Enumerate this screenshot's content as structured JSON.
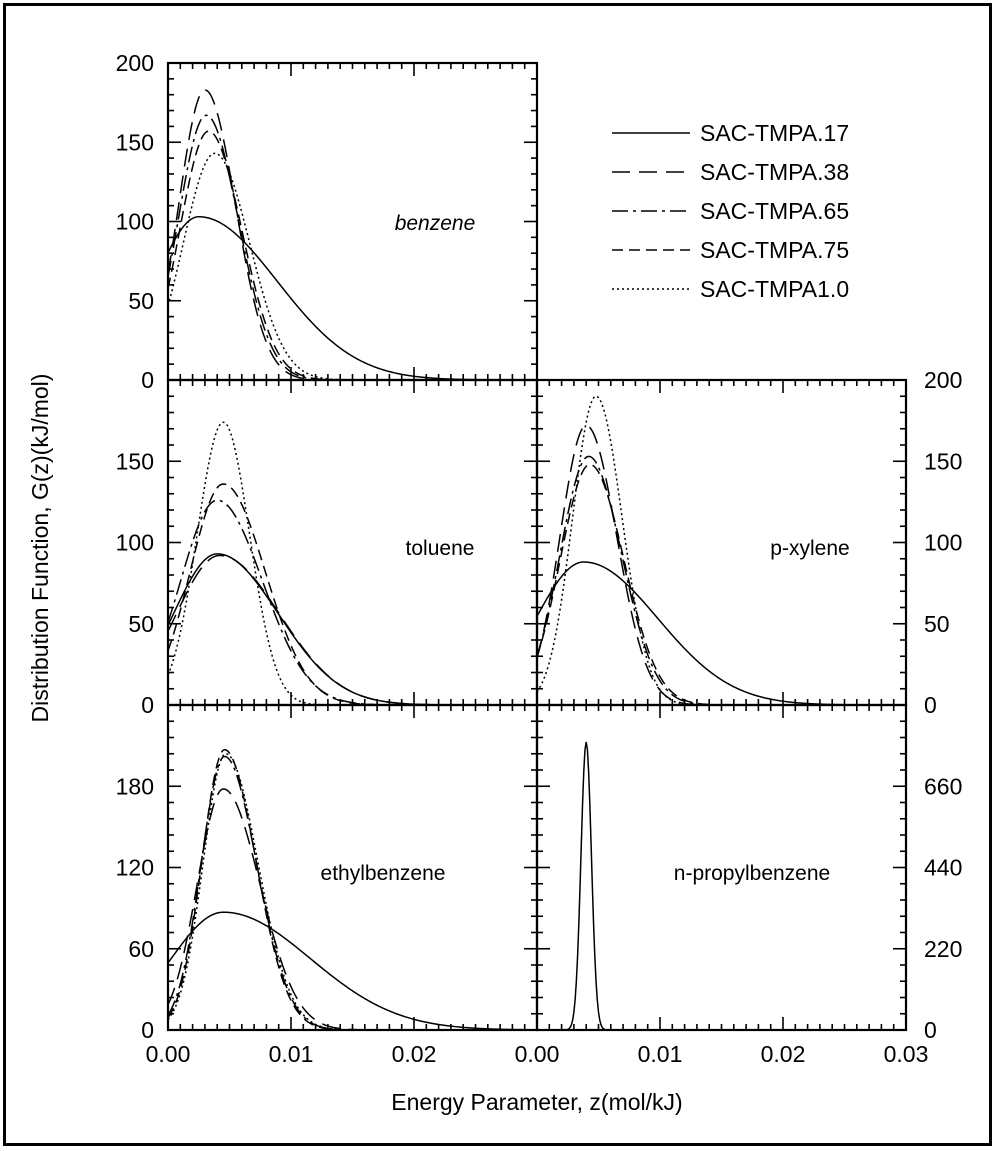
{
  "chart_data": {
    "type": "line",
    "ylabel": "Distribution Function, G(z)(kJ/mol)",
    "xlabel": "Energy Parameter, z(mol/kJ)",
    "legend": {
      "placement": "top-right",
      "entries": [
        {
          "name": "SAC-TMPA.17",
          "dash": "solid"
        },
        {
          "name": "SAC-TMPA.38",
          "dash": "long-dash"
        },
        {
          "name": "SAC-TMPA.65",
          "dash": "long-dash-dot"
        },
        {
          "name": "SAC-TMPA.75",
          "dash": "dash"
        },
        {
          "name": "SAC-TMPA1.0",
          "dash": "dotted"
        }
      ]
    },
    "x_ticklabels": [
      "0.00",
      "0.01",
      "0.02",
      "0.00",
      "0.01",
      "0.02",
      "0.03"
    ],
    "panels": [
      {
        "id": "benzene",
        "label": "benzene",
        "italic": true,
        "xlim": [
          0,
          0.03
        ],
        "ylim": [
          0,
          200
        ],
        "yticks": [
          "0",
          "50",
          "100",
          "150",
          "200"
        ],
        "ytick_side": "left",
        "series": [
          {
            "name": "SAC-TMPA.17",
            "peak_x": 0.0025,
            "peak_y": 103,
            "w_left": 0.005,
            "w_right": 0.009,
            "shape": 2.0
          },
          {
            "name": "SAC-TMPA.38",
            "peak_x": 0.003,
            "peak_y": 183,
            "w_left": 0.003,
            "w_right": 0.0035,
            "shape": 2.0
          },
          {
            "name": "SAC-TMPA.65",
            "peak_x": 0.0031,
            "peak_y": 167,
            "w_left": 0.0032,
            "w_right": 0.0037,
            "shape": 2.0
          },
          {
            "name": "SAC-TMPA.75",
            "peak_x": 0.0033,
            "peak_y": 157,
            "w_left": 0.0033,
            "w_right": 0.0038,
            "shape": 2.0
          },
          {
            "name": "SAC-TMPA1.0",
            "peak_x": 0.0038,
            "peak_y": 143,
            "w_left": 0.0036,
            "w_right": 0.004,
            "shape": 2.0
          }
        ]
      },
      {
        "id": "toluene",
        "label": "toluene",
        "italic": false,
        "xlim": [
          0,
          0.03
        ],
        "ylim": [
          0,
          200
        ],
        "yticks": [
          "0",
          "50",
          "100",
          "150"
        ],
        "ytick_side": "left",
        "series": [
          {
            "name": "SAC-TMPA.17",
            "peak_x": 0.004,
            "peak_y": 93,
            "w_left": 0.005,
            "w_right": 0.007,
            "shape": 2.0
          },
          {
            "name": "SAC-TMPA.38",
            "peak_x": 0.0042,
            "peak_y": 92,
            "w_left": 0.005,
            "w_right": 0.0069,
            "shape": 2.0
          },
          {
            "name": "SAC-TMPA.65",
            "peak_x": 0.004,
            "peak_y": 126,
            "w_left": 0.0042,
            "w_right": 0.0052,
            "shape": 2.0
          },
          {
            "name": "SAC-TMPA.75",
            "peak_x": 0.0045,
            "peak_y": 136,
            "w_left": 0.0038,
            "w_right": 0.0048,
            "shape": 2.0
          },
          {
            "name": "SAC-TMPA1.0",
            "peak_x": 0.0045,
            "peak_y": 174,
            "w_left": 0.003,
            "w_right": 0.003,
            "shape": 2.0
          }
        ]
      },
      {
        "id": "p-xylene",
        "label": "p-xylene",
        "italic": false,
        "xlim": [
          0,
          0.03
        ],
        "ylim": [
          0,
          200
        ],
        "yticks": [
          "0",
          "50",
          "100",
          "150",
          "200"
        ],
        "ytick_side": "right",
        "series": [
          {
            "name": "SAC-TMPA.17",
            "peak_x": 0.0038,
            "peak_y": 88,
            "w_left": 0.0055,
            "w_right": 0.0085,
            "shape": 2.0
          },
          {
            "name": "SAC-TMPA.38",
            "peak_x": 0.004,
            "peak_y": 172,
            "w_left": 0.003,
            "w_right": 0.0035,
            "shape": 2.0
          },
          {
            "name": "SAC-TMPA.65",
            "peak_x": 0.0042,
            "peak_y": 153,
            "w_left": 0.0033,
            "w_right": 0.0038,
            "shape": 2.0
          },
          {
            "name": "SAC-TMPA.75",
            "peak_x": 0.0043,
            "peak_y": 148,
            "w_left": 0.0034,
            "w_right": 0.0039,
            "shape": 2.0
          },
          {
            "name": "SAC-TMPA1.0",
            "peak_x": 0.0048,
            "peak_y": 190,
            "w_left": 0.0027,
            "w_right": 0.003,
            "shape": 2.0
          }
        ]
      },
      {
        "id": "ethylbenzene",
        "label": "ethylbenzene",
        "italic": false,
        "xlim": [
          0,
          0.03
        ],
        "ylim": [
          0,
          240
        ],
        "yticks": [
          "0",
          "60",
          "120",
          "180"
        ],
        "ytick_side": "left",
        "series": [
          {
            "name": "SAC-TMPA.17",
            "peak_x": 0.0045,
            "peak_y": 87,
            "w_left": 0.006,
            "w_right": 0.01,
            "shape": 2.0
          },
          {
            "name": "SAC-TMPA.38",
            "peak_x": 0.0045,
            "peak_y": 178,
            "w_left": 0.003,
            "w_right": 0.0042,
            "shape": 2.0
          },
          {
            "name": "SAC-TMPA.65",
            "peak_x": 0.0046,
            "peak_y": 202,
            "w_left": 0.0027,
            "w_right": 0.0037,
            "shape": 2.0
          },
          {
            "name": "SAC-TMPA.75",
            "peak_x": 0.0046,
            "peak_y": 207,
            "w_left": 0.0026,
            "w_right": 0.0036,
            "shape": 2.0
          },
          {
            "name": "SAC-TMPA1.0",
            "peak_x": 0.0047,
            "peak_y": 204,
            "w_left": 0.0026,
            "w_right": 0.0037,
            "shape": 2.0
          }
        ]
      },
      {
        "id": "n-propylbenzene",
        "label": "n-propylbenzene",
        "italic": false,
        "xlim": [
          0,
          0.03
        ],
        "ylim": [
          0,
          880
        ],
        "yticks": [
          "0",
          "220",
          "440",
          "660"
        ],
        "ytick_side": "right",
        "series": [
          {
            "name": "SAC-TMPA.17",
            "peak_x": 0.004,
            "peak_y": 780,
            "w_left": 0.0006,
            "w_right": 0.0006,
            "shape": 2.0
          }
        ]
      }
    ]
  }
}
